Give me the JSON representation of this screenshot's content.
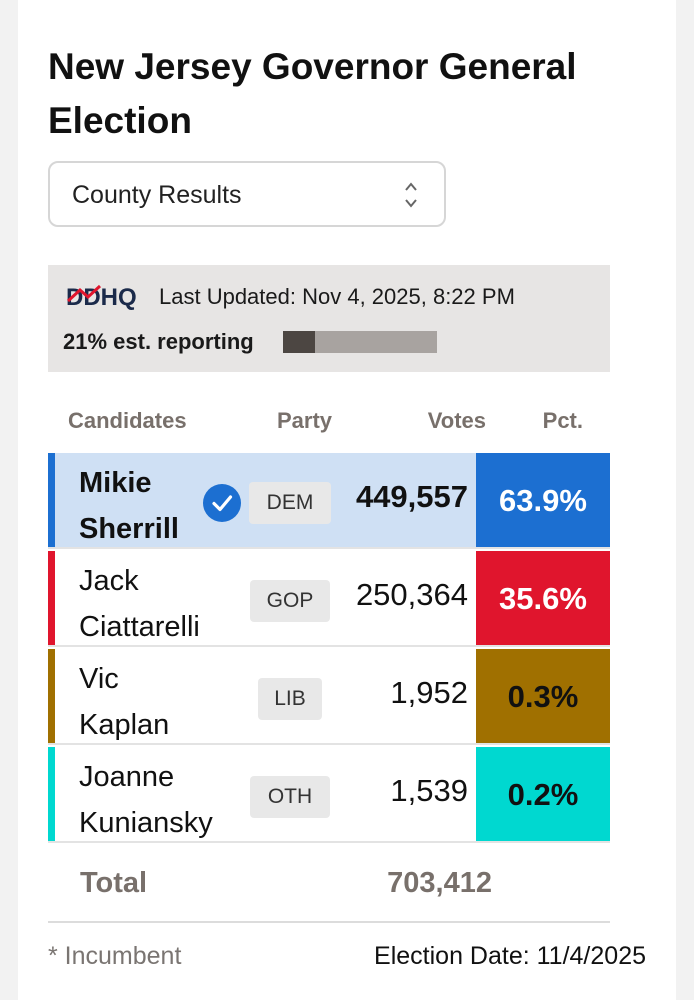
{
  "title": "New Jersey Governor General Election",
  "view_select": {
    "selected": "County Results"
  },
  "status": {
    "brand": "DDHQ",
    "last_updated": "Last Updated: Nov 4, 2025, 8:22 PM",
    "reporting_label": "21% est. reporting",
    "reporting_fraction": 0.21
  },
  "table": {
    "headers": {
      "candidates": "Candidates",
      "party": "Party",
      "votes": "Votes",
      "pct": "Pct."
    },
    "rows": [
      {
        "name_line1": "Mikie",
        "name_line2": "Sherrill",
        "party": "DEM",
        "votes": "449,557",
        "pct": "63.9%",
        "winner": true,
        "color": "#1c6fd1",
        "pct_text_color": "#ffffff"
      },
      {
        "name_line1": "Jack",
        "name_line2": "Ciattarelli",
        "party": "GOP",
        "votes": "250,364",
        "pct": "35.6%",
        "winner": false,
        "color": "#e0152d",
        "pct_text_color": "#ffffff"
      },
      {
        "name_line1": "Vic",
        "name_line2": "Kaplan",
        "party": "LIB",
        "votes": "1,952",
        "pct": "0.3%",
        "winner": false,
        "color": "#a07000",
        "pct_text_color": "#111111"
      },
      {
        "name_line1": "Joanne",
        "name_line2": "Kuniansky",
        "party": "OTH",
        "votes": "1,539",
        "pct": "0.2%",
        "winner": false,
        "color": "#00d8d0",
        "pct_text_color": "#111111"
      }
    ],
    "total_label": "Total",
    "total_votes": "703,412"
  },
  "footer": {
    "incumbent_note": "* Incumbent",
    "election_date": "Election Date: 11/4/2025"
  }
}
